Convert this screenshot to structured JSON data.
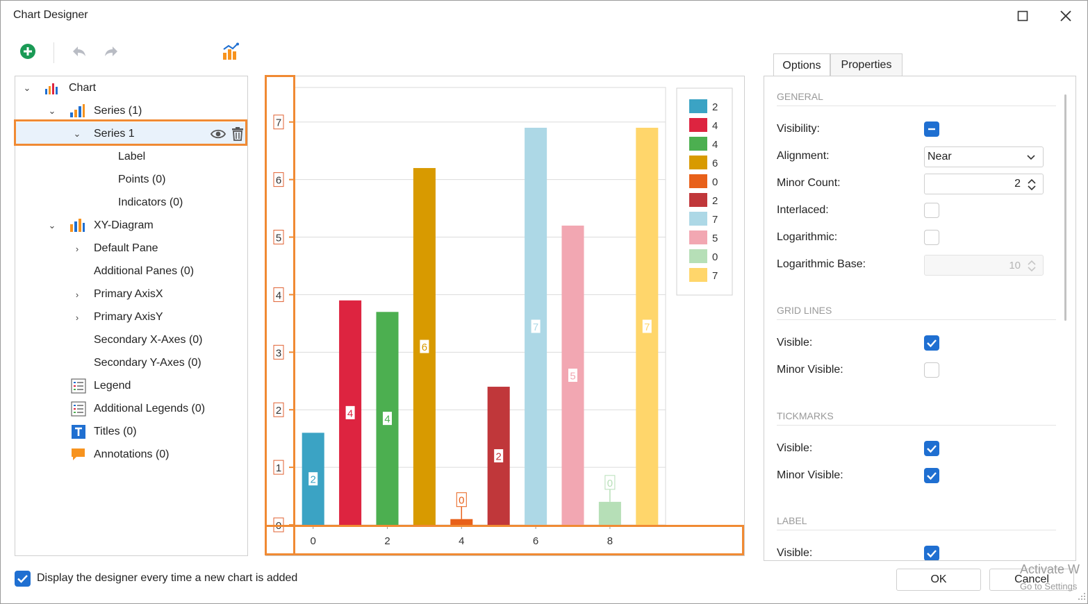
{
  "window": {
    "title": "Chart Designer"
  },
  "tree": {
    "root": "Chart",
    "series_group": "Series (1)",
    "series_item": "Series 1",
    "label": "Label",
    "points": "Points (0)",
    "indicators": "Indicators (0)",
    "xy_diagram": "XY-Diagram",
    "default_pane": "Default Pane",
    "additional_panes": "Additional Panes (0)",
    "primary_axis_x": "Primary AxisX",
    "primary_axis_y": "Primary AxisY",
    "secondary_x": "Secondary X-Axes (0)",
    "secondary_y": "Secondary Y-Axes (0)",
    "legend": "Legend",
    "additional_legends": "Additional Legends (0)",
    "titles": "Titles (0)",
    "annotations": "Annotations (0)"
  },
  "chart_data": {
    "type": "bar",
    "x": [
      0,
      1,
      2,
      3,
      4,
      5,
      6,
      7,
      8,
      9
    ],
    "values": [
      1.6,
      3.9,
      3.7,
      6.2,
      0.1,
      2.4,
      6.9,
      5.2,
      0.4,
      6.9
    ],
    "point_labels": [
      "2",
      "4",
      "4",
      "6",
      "0",
      "2",
      "7",
      "5",
      "0",
      "7"
    ],
    "colors": [
      "#3ba3c4",
      "#dd2440",
      "#4caf50",
      "#d89a00",
      "#e86019",
      "#c0373a",
      "#add8e6",
      "#f2a7b2",
      "#b6dfb7",
      "#ffd66b"
    ],
    "xticks": [
      "0",
      "2",
      "4",
      "6",
      "8"
    ],
    "yticks": [
      "0",
      "1",
      "2",
      "3",
      "4",
      "5",
      "6",
      "7"
    ],
    "ylim": [
      0,
      7.6
    ],
    "xlim": [
      -0.5,
      9.5
    ],
    "legend_entries": [
      "2",
      "4",
      "4",
      "6",
      "0",
      "2",
      "7",
      "5",
      "0",
      "7"
    ],
    "legend_position": "top-right",
    "grid": true
  },
  "tabs": {
    "options": "Options",
    "properties": "Properties"
  },
  "options": {
    "general_header": "GENERAL",
    "visibility_label": "Visibility:",
    "alignment_label": "Alignment:",
    "alignment_value": "Near",
    "minor_count_label": "Minor Count:",
    "minor_count_value": "2",
    "interlaced_label": "Interlaced:",
    "logarithmic_label": "Logarithmic:",
    "log_base_label": "Logarithmic Base:",
    "log_base_value": "10",
    "grid_header": "GRID LINES",
    "grid_visible_label": "Visible:",
    "grid_minor_label": "Minor Visible:",
    "tick_header": "TICKMARKS",
    "tick_visible_label": "Visible:",
    "tick_minor_label": "Minor Visible:",
    "label_header": "LABEL",
    "label_visible_label": "Visible:"
  },
  "footer": {
    "display_designer": "Display the designer every time a new chart is added",
    "ok": "OK",
    "cancel": "Cancel"
  },
  "watermark": {
    "line1": "Activate W",
    "line2": "Go to Settings"
  },
  "colors": {
    "accent": "#1f6fd1",
    "highlight": "#f08a33",
    "selection": "#e9f2fb"
  }
}
